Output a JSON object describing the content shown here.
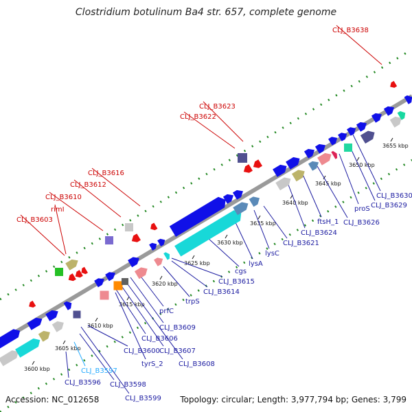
{
  "title": "Clostridium botulinum Ba4 str. 657, complete genome",
  "footer": {
    "accession": "Accession: NC_012658",
    "summary": "Topology: circular; Length: 3,977,794 bp; Genes: 3,799"
  },
  "colors": {
    "forward_gene": "#1010e8",
    "reverse_gene": "#e81010",
    "backbone": "#9a9a9a",
    "grid_tick": "#228822",
    "label_forward": "#1a1aa0",
    "label_reverse": "#cc0000",
    "label_rna": "#22aaff"
  },
  "kbp_ticks": [
    "3600 kbp",
    "3605 kbp",
    "3610 kbp",
    "3615 kbp",
    "3620 kbp",
    "3625 kbp",
    "3630 kbp",
    "3635 kbp",
    "3640 kbp",
    "3645 kbp",
    "3650 kbp",
    "3655 kbp"
  ],
  "forward_labels": [
    "CLJ_B3596",
    "CLJ_B3597",
    "CLJ_B3598",
    "CLJ_B3599",
    "CLJ_B3600",
    "tyrS_2",
    "CLJ_B3606",
    "CLJ_B3607",
    "CLJ_B3608",
    "CLJ_B3609",
    "prfC",
    "trpS",
    "CLJ_B3614",
    "CLJ_B3615",
    "cgs",
    "lysA",
    "lysC",
    "CLJ_B3621",
    "CLJ_B3624",
    "ftsH_1",
    "CLJ_B3626",
    "proS",
    "CLJ_B3629",
    "CLJ_B3630"
  ],
  "reverse_labels": [
    "CLJ_B3603",
    "rimI",
    "CLJ_B3610",
    "CLJ_B3612",
    "CLJ_B3616",
    "CLJ_B3622",
    "CLJ_B3623",
    "CLJ_B3638"
  ]
}
